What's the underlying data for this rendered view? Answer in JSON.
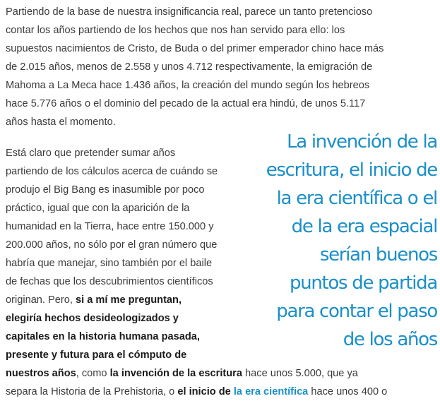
{
  "article": {
    "paragraph1": [
      [
        {
          "t": "Partiendo de la base de nuestra insignificancia real, parece un tanto pretencioso"
        }
      ],
      [
        {
          "t": "contar los años partiendo de los hechos que nos han servido para ello: los"
        }
      ],
      [
        {
          "t": "supuestos nacimientos de Cristo, de Buda o del primer emperador chino hace más"
        }
      ],
      [
        {
          "t": "de 2.015 años, menos de 2.558 y unos 4.712 respectivamente, la emigración de"
        }
      ],
      [
        {
          "t": "Mahoma a La Meca hace 1.436 años, la creación del mundo según los hebreos"
        }
      ],
      [
        {
          "t": "hace 5.776 años o el dominio del pecado de la actual era hindú, de unos 5.117"
        }
      ],
      [
        {
          "t": "años hasta el momento."
        }
      ]
    ],
    "paragraph2": [
      [
        {
          "t": "Está claro que pretender sumar años"
        }
      ],
      [
        {
          "t": "partiendo de los cálculos acerca de cuándo se"
        }
      ],
      [
        {
          "t": "produjo el Big Bang es inasumible por poco"
        }
      ],
      [
        {
          "t": "práctico, igual que con la aparición de la"
        }
      ],
      [
        {
          "t": "humanidad en la Tierra, hace entre 150.000 y"
        }
      ],
      [
        {
          "t": "200.000 años, no sólo por el gran número que"
        }
      ],
      [
        {
          "t": "habría que manejar, sino también por el baile"
        }
      ],
      [
        {
          "t": "de fechas que los descubrimientos científicos"
        }
      ],
      [
        {
          "t": "originan. Pero, "
        },
        {
          "t": "si a mí me preguntan,",
          "b": true
        }
      ],
      [
        {
          "t": "elegiría hechos desideologizados y",
          "b": true
        }
      ],
      [
        {
          "t": "capitales en la historia humana pasada,",
          "b": true
        }
      ],
      [
        {
          "t": "presente y futura para el cómputo de",
          "b": true
        }
      ],
      [
        {
          "t": "nuestros años",
          "b": true
        },
        {
          "t": ", como "
        },
        {
          "t": "la invención de la escritura",
          "b": true
        },
        {
          "t": " hace unos 5.000, que ya"
        }
      ],
      [
        {
          "t": "separa la Historia de la Prehistoria, o "
        },
        {
          "t": "el inicio de",
          "b": true
        },
        {
          "t": " "
        },
        {
          "t": "la era científica",
          "link": true
        },
        {
          "t": " hace unos 400 o"
        }
      ]
    ]
  },
  "pull_quote": {
    "lines": [
      "La invención de la",
      "escritura, el inicio de",
      "la era científica o el",
      "de la era espacial",
      "serían buenos",
      "puntos de partida",
      "para contar el paso",
      "de los años"
    ],
    "color": "#1a8fc8"
  }
}
